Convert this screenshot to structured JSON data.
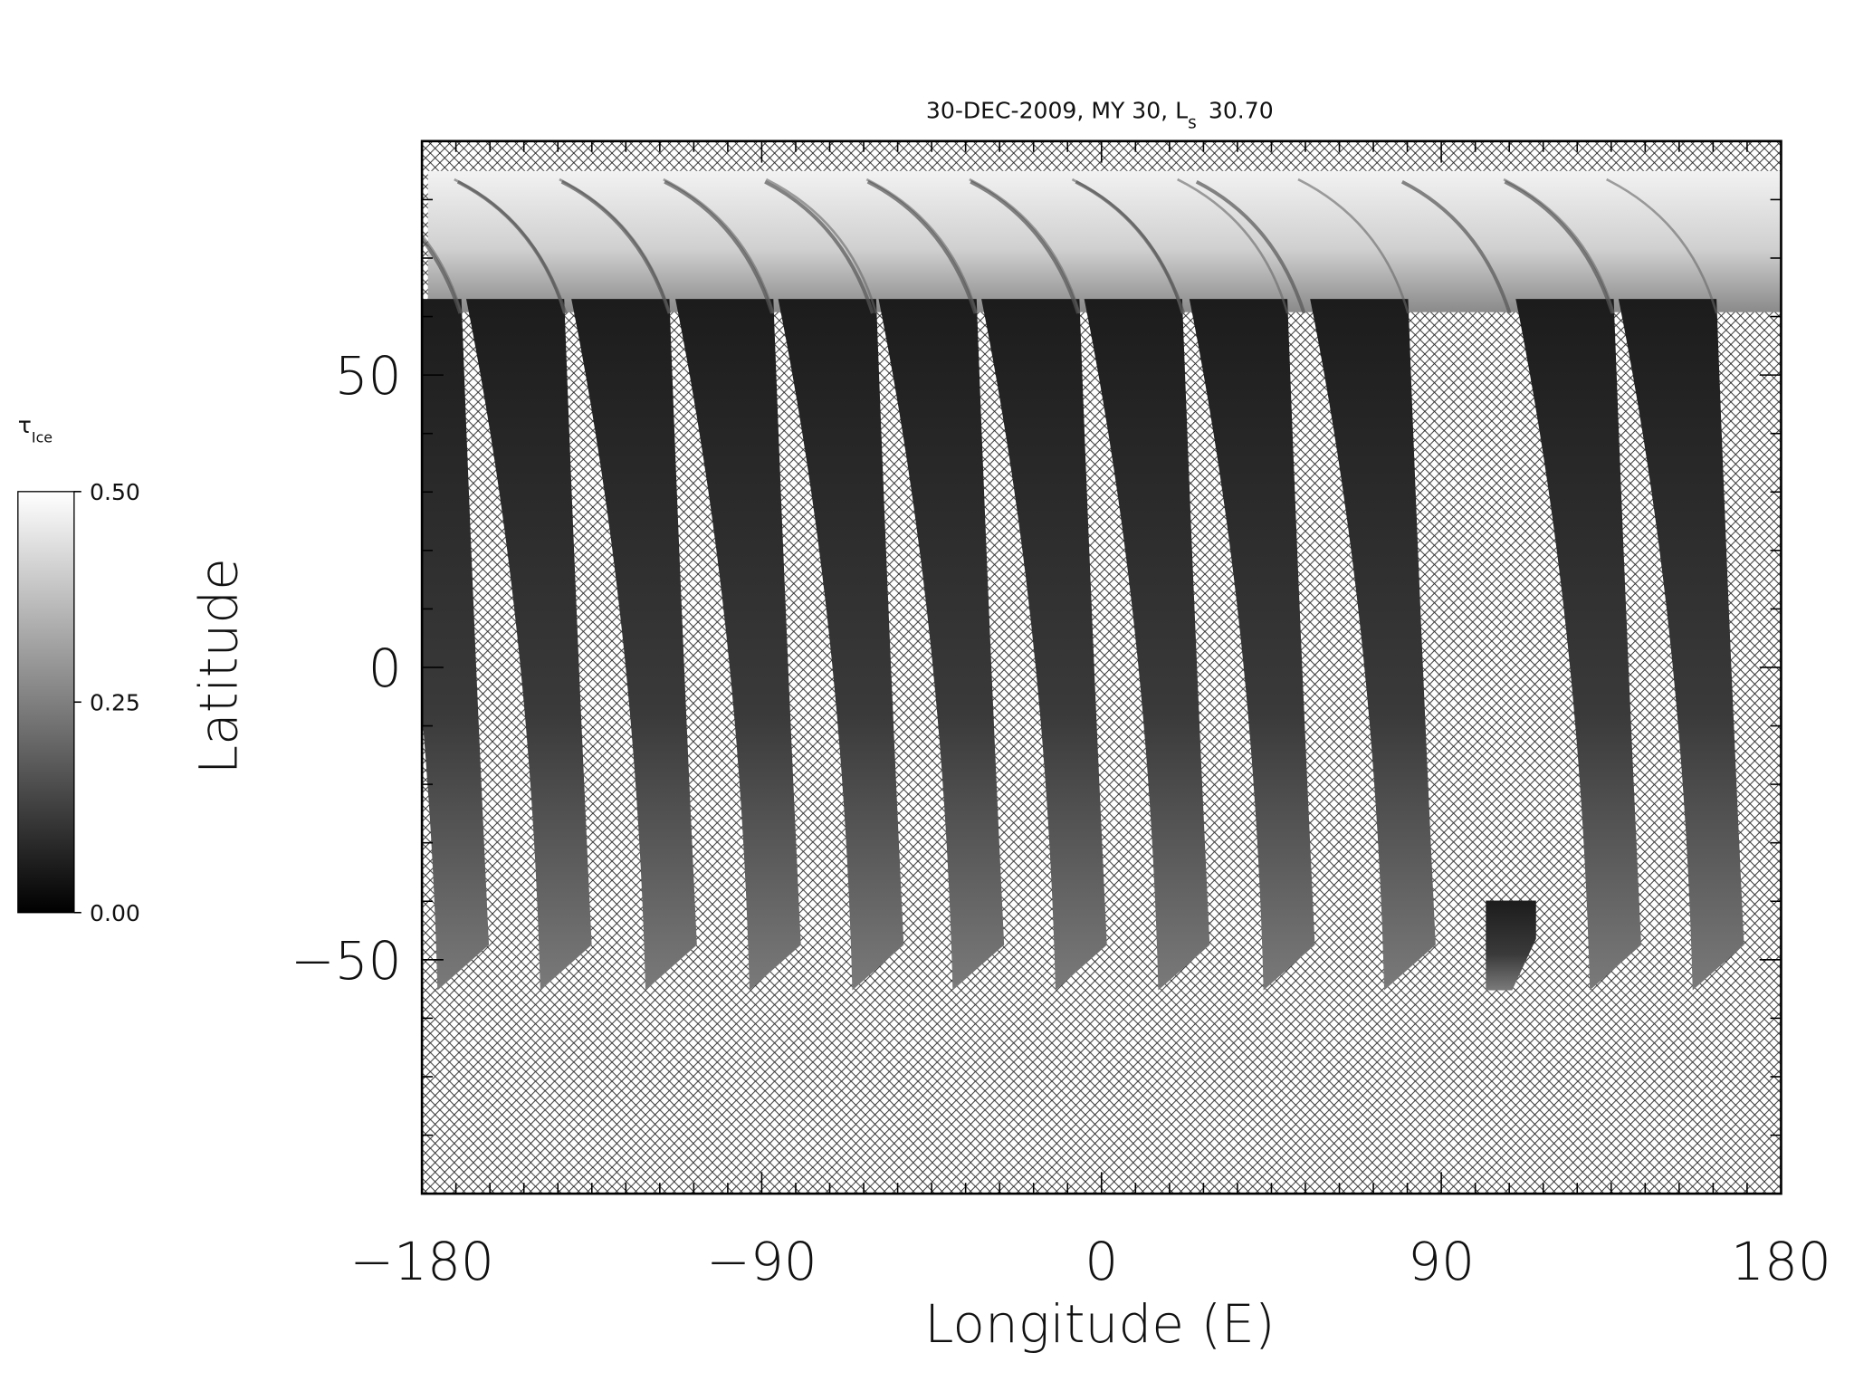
{
  "chart_data": {
    "type": "map",
    "title": {
      "text": "30-DEC-2009, MY 30,  L",
      "sub": "s",
      "after": "30.70"
    },
    "xlabel": "Longitude (E)",
    "ylabel": "Latitude",
    "xlim": [
      -180,
      180
    ],
    "ylim": [
      -90,
      90
    ],
    "xticks": [
      {
        "value": -180,
        "label": "−180"
      },
      {
        "value": -90,
        "label": "−90"
      },
      0,
      90,
      180
    ],
    "yticks": [
      {
        "value": -50,
        "label": "−50"
      },
      0,
      50
    ],
    "xminorticks": [
      -171,
      -162,
      -153,
      -144,
      -135,
      -126,
      -117,
      -108,
      -99,
      -81,
      -72,
      -63,
      -54,
      -45,
      -36,
      -27,
      -18,
      -9,
      9,
      18,
      27,
      36,
      45,
      54,
      63,
      72,
      81,
      99,
      108,
      117,
      126,
      135,
      144,
      153,
      162,
      171
    ],
    "yminorticks": [
      -80,
      -70,
      -60,
      -40,
      -30,
      -20,
      -10,
      10,
      20,
      30,
      40,
      60,
      70,
      80
    ],
    "colorbar": {
      "label": {
        "text": "τ",
        "sub": "Ice"
      },
      "lim": [
        0,
        0.5
      ],
      "ticks": [
        {
          "value": 0,
          "label": "0.00"
        },
        {
          "value": 0.25,
          "label": "0.25"
        },
        {
          "value": 0.5,
          "label": "0.50"
        }
      ],
      "colors": [
        "#000000",
        "#ffffff"
      ]
    }
  }
}
